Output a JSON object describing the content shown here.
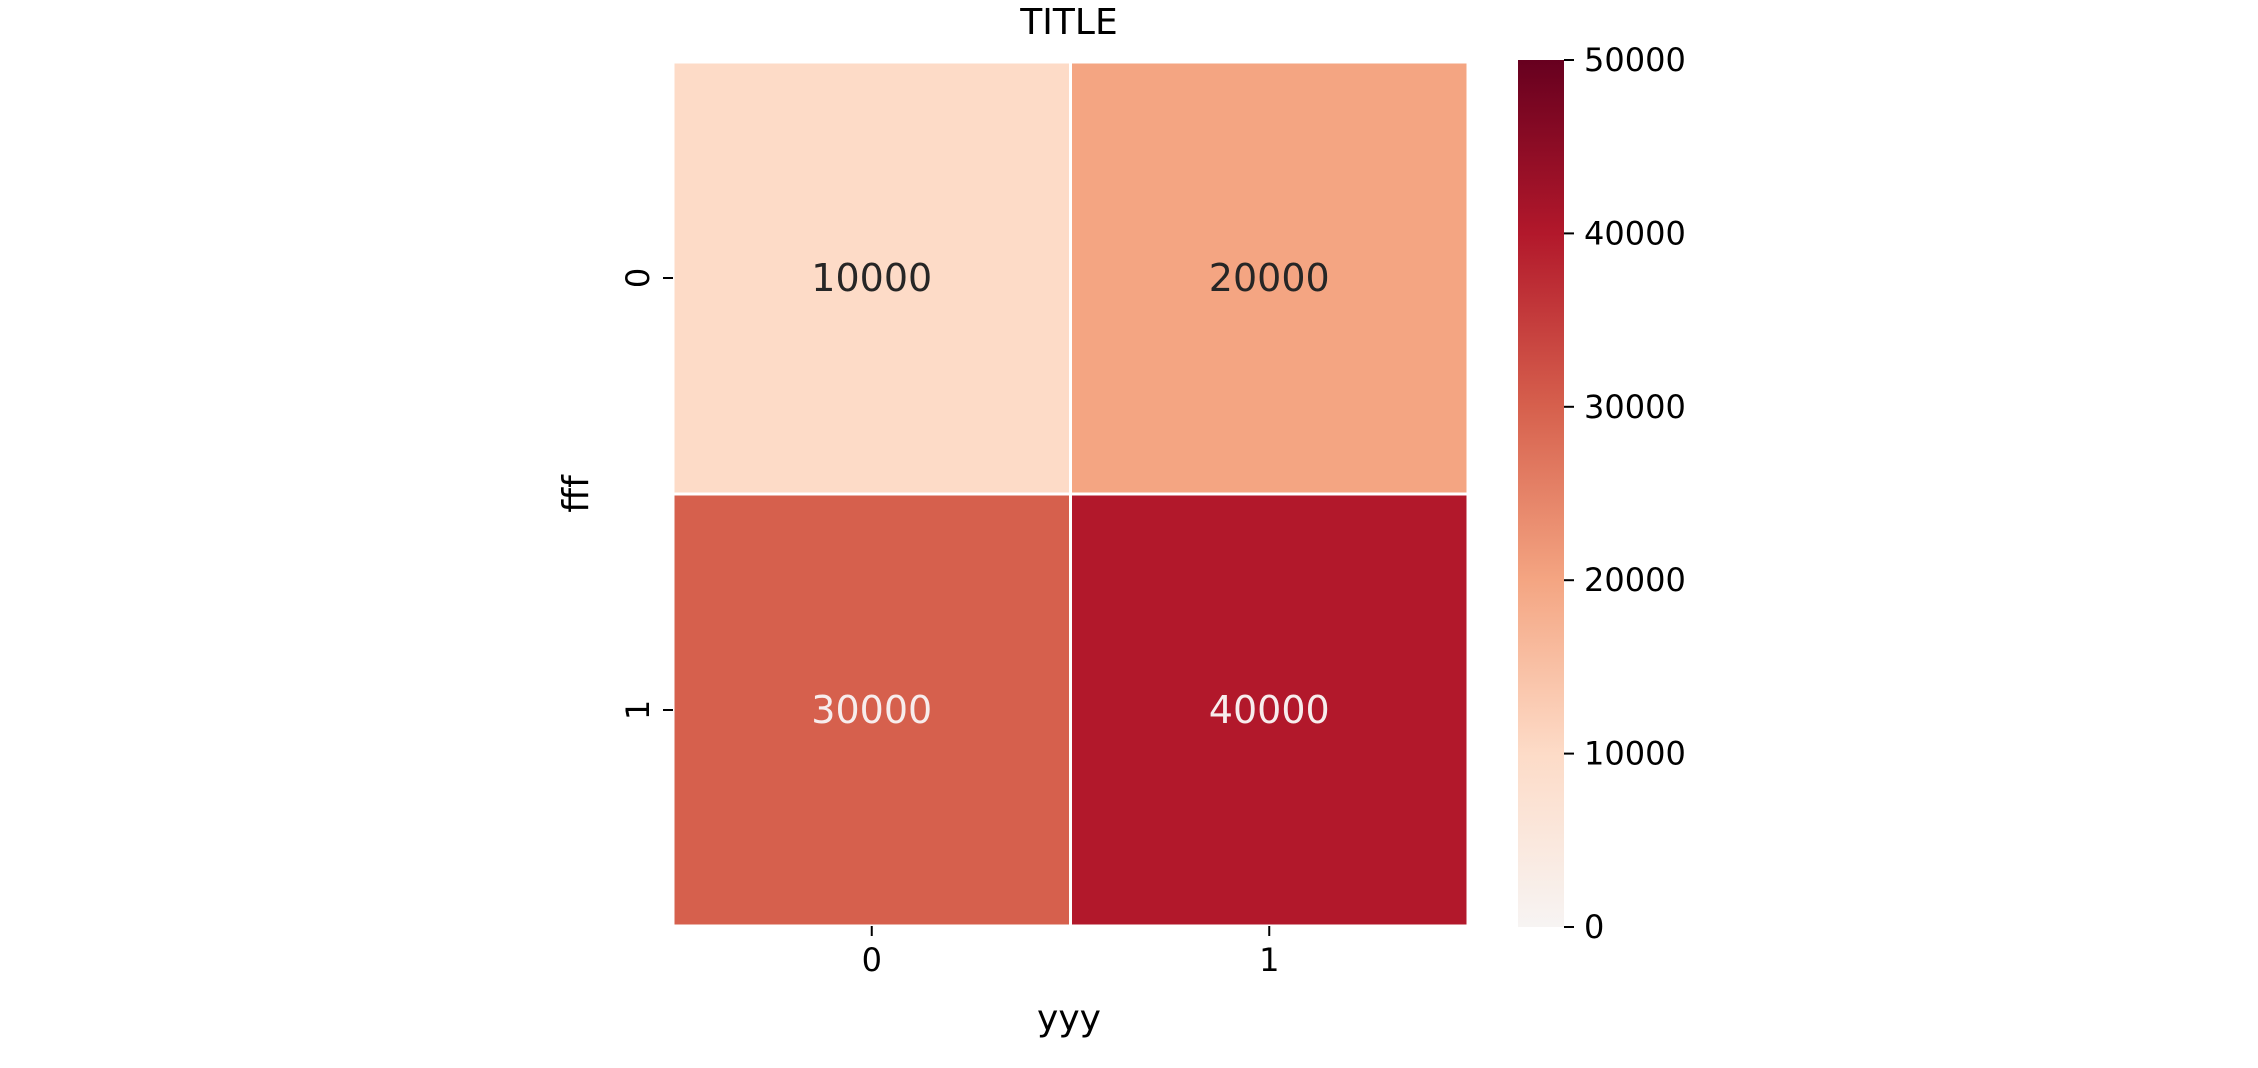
{
  "chart_data": {
    "type": "heatmap",
    "title": "TITLE",
    "xlabel": "yyy",
    "ylabel": "fff",
    "x_categories": [
      "0",
      "1"
    ],
    "y_categories": [
      "0",
      "1"
    ],
    "values": [
      [
        10000,
        20000
      ],
      [
        30000,
        40000
      ]
    ],
    "cell_labels": [
      [
        "10000",
        "20000"
      ],
      [
        "30000",
        "40000"
      ]
    ],
    "colorbar": {
      "vmin": 0,
      "vmax": 50000,
      "ticks": [
        0,
        10000,
        20000,
        30000,
        40000,
        50000
      ],
      "tick_labels": [
        "0",
        "10000",
        "20000",
        "30000",
        "40000",
        "50000"
      ],
      "colormap": "Reds-like",
      "stops": [
        "#f7f4f3",
        "#fddbc7",
        "#f4a582",
        "#d6604d",
        "#b2182b",
        "#67001f"
      ]
    },
    "grid": false
  }
}
